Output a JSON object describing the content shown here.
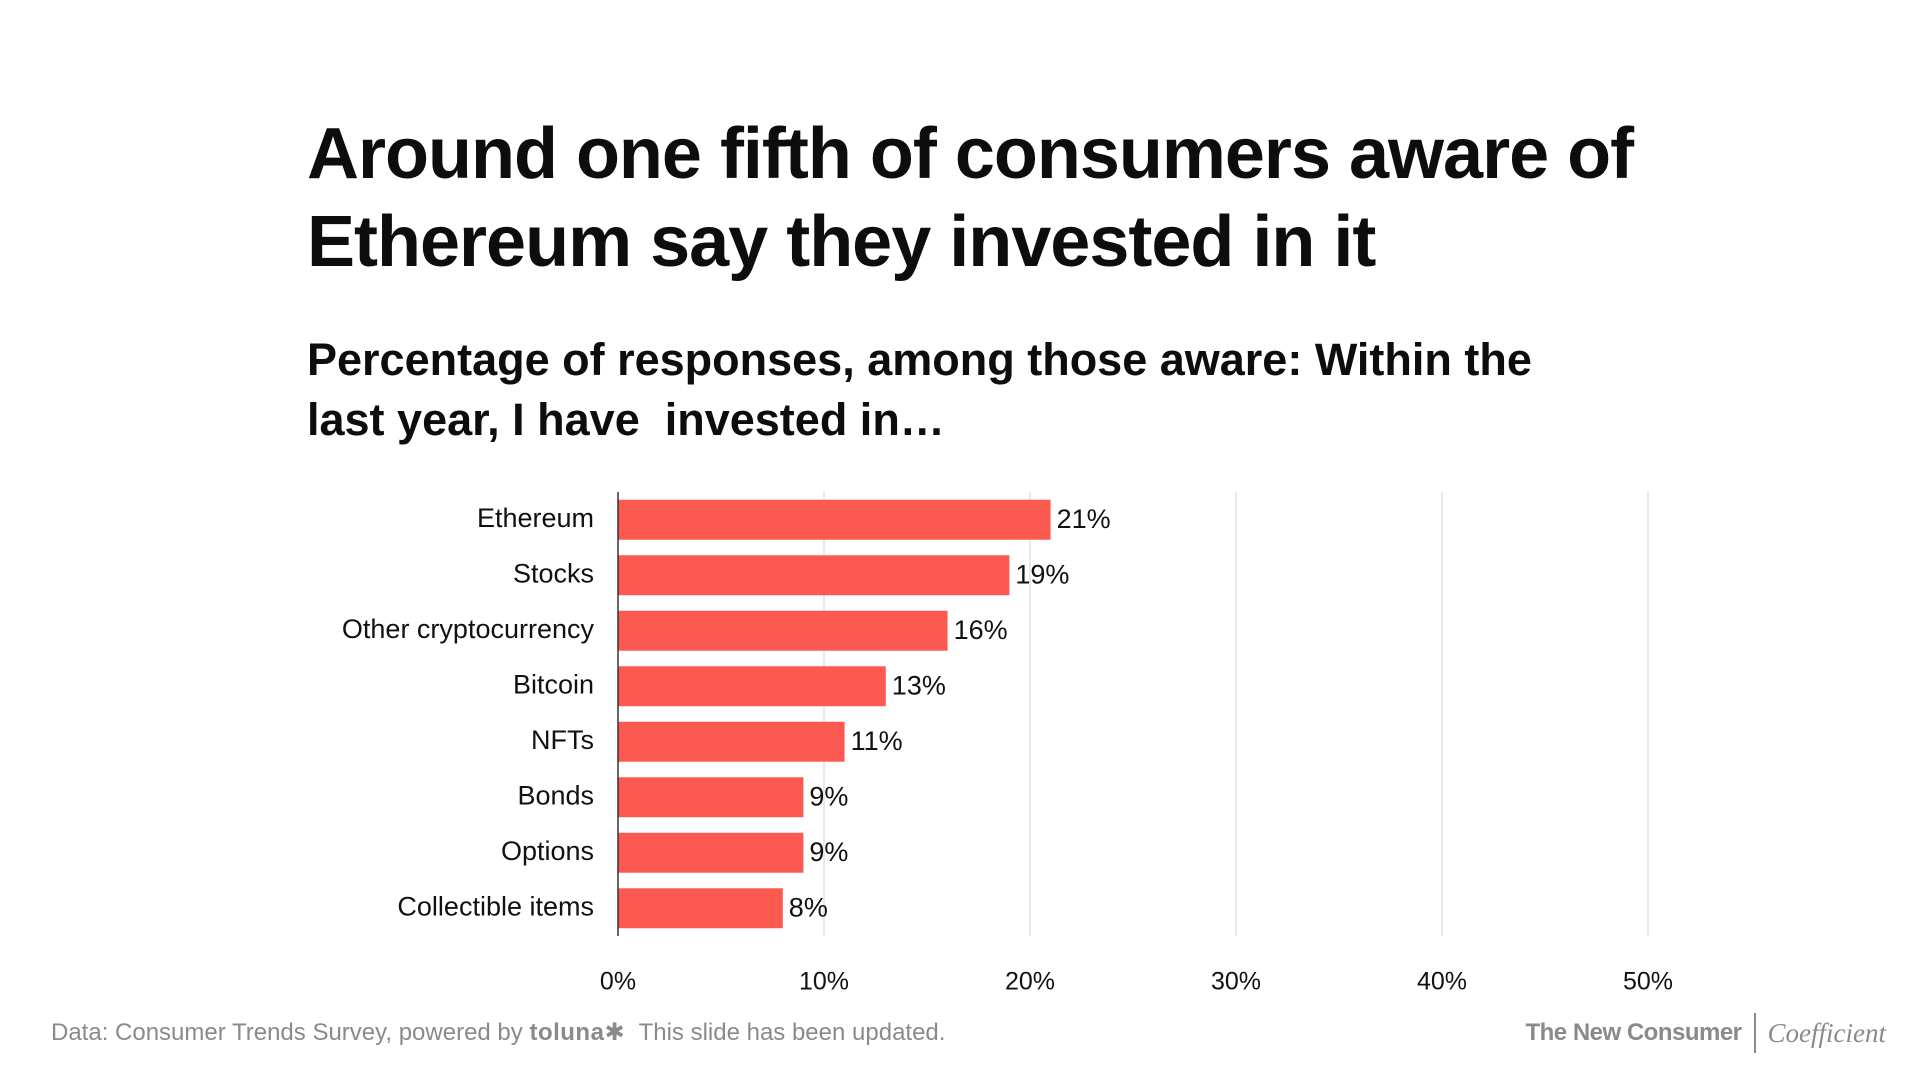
{
  "title_lines": [
    "Around one fifth of consumers aware of",
    "Ethereum say they invested in it"
  ],
  "subtitle_lines": [
    "Percentage of responses, among those aware: Within the",
    "last year, I have  invested in…"
  ],
  "chart_data": {
    "type": "bar",
    "orientation": "horizontal",
    "categories": [
      "Ethereum",
      "Stocks",
      "Other cryptocurrency",
      "Bitcoin",
      "NFTs",
      "Bonds",
      "Options",
      "Collectible items"
    ],
    "values": [
      21,
      19,
      16,
      13,
      11,
      9,
      9,
      8
    ],
    "data_labels": [
      "21%",
      "19%",
      "16%",
      "13%",
      "11%",
      "9%",
      "9%",
      "8%"
    ],
    "xlim": [
      0,
      50
    ],
    "xticks": [
      0,
      10,
      20,
      30,
      40,
      50
    ],
    "xtick_labels": [
      "0%",
      "10%",
      "20%",
      "30%",
      "40%",
      "50%"
    ],
    "grid": true,
    "bar_color": "#fc5a50",
    "grid_color": "#e2e2e2",
    "axis_color": "#333333"
  },
  "footer": {
    "source_prefix": "Data: Consumer Trends Survey, powered by ",
    "source_brand": "toluna",
    "source_brand_star": "✱",
    "note": "This slide has been updated.",
    "brand_primary": "The New Consumer",
    "brand_secondary": "Coefficient"
  }
}
